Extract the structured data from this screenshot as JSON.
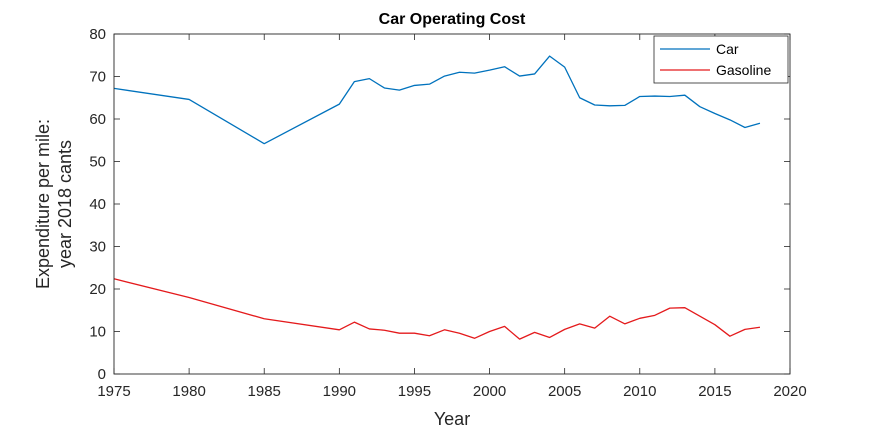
{
  "chart_data": {
    "type": "line",
    "title": "Car Operating Cost",
    "xlabel": "Year",
    "ylabel": [
      "Expenditure per mile:",
      "year 2018 cants"
    ],
    "xlim": [
      1975,
      2020
    ],
    "ylim": [
      0,
      80
    ],
    "xticks": [
      1975,
      1980,
      1985,
      1990,
      1995,
      2000,
      2005,
      2010,
      2015,
      2020
    ],
    "yticks": [
      0,
      10,
      20,
      30,
      40,
      50,
      60,
      70,
      80
    ],
    "legend_position": "top-right",
    "x": [
      1975,
      1980,
      1985,
      1990,
      1991,
      1992,
      1993,
      1994,
      1995,
      1996,
      1997,
      1998,
      1999,
      2000,
      2001,
      2002,
      2003,
      2004,
      2005,
      2006,
      2007,
      2008,
      2009,
      2010,
      2011,
      2012,
      2013,
      2014,
      2015,
      2016,
      2017,
      2018
    ],
    "series": [
      {
        "name": "Car",
        "color": "#0072bd",
        "values": [
          67.2,
          64.6,
          54.2,
          63.5,
          68.8,
          69.5,
          67.3,
          66.8,
          67.9,
          68.2,
          70.1,
          71.0,
          70.8,
          71.5,
          72.3,
          70.1,
          70.6,
          74.8,
          72.2,
          65.0,
          63.3,
          63.1,
          63.2,
          65.3,
          65.4,
          65.3,
          65.6,
          62.9,
          61.3,
          59.8,
          58.0,
          59.0
        ]
      },
      {
        "name": "Gasoline",
        "color": "#e41a1c",
        "values": [
          22.4,
          18.0,
          13.0,
          10.4,
          12.2,
          10.6,
          10.3,
          9.6,
          9.6,
          9.0,
          10.4,
          9.6,
          8.4,
          10.0,
          11.2,
          8.2,
          9.8,
          8.6,
          10.5,
          11.8,
          10.8,
          13.6,
          11.8,
          13.1,
          13.8,
          15.5,
          15.6,
          13.6,
          11.6,
          8.9,
          10.5,
          11.0
        ]
      }
    ]
  }
}
